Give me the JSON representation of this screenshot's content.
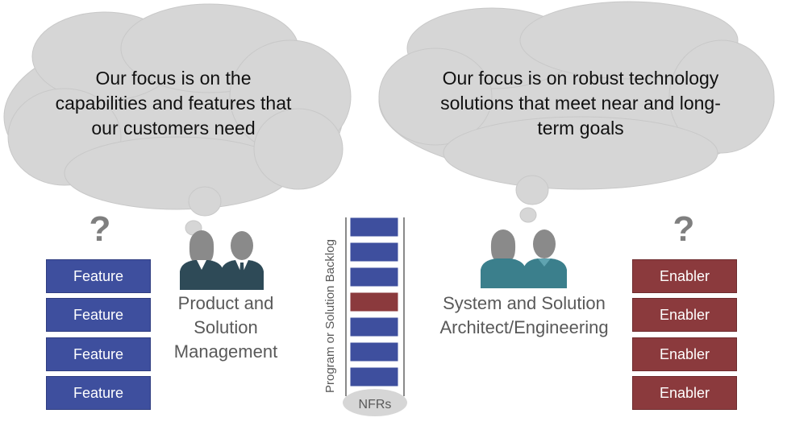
{
  "left_thought": {
    "lines": [
      "Our focus is on the",
      "capabilities and features that",
      "our customers need"
    ]
  },
  "right_thought": {
    "lines": [
      "Our focus is on robust technology",
      "solutions that meet near and long-",
      "term goals"
    ]
  },
  "question_mark": "?",
  "features": [
    "Feature",
    "Feature",
    "Feature",
    "Feature"
  ],
  "enablers": [
    "Enabler",
    "Enabler",
    "Enabler",
    "Enabler"
  ],
  "product_role": {
    "lines": [
      "Product and",
      "Solution",
      "Management"
    ]
  },
  "architect_role": {
    "lines": [
      "System and Solution",
      "Architect/Engineering"
    ]
  },
  "backlog": {
    "title": "Program or Solution Backlog",
    "nfr_label": "NFRs",
    "items": [
      "feature",
      "feature",
      "feature",
      "enabler",
      "feature",
      "feature",
      "feature"
    ]
  },
  "colors": {
    "feature": "#3e4f9e",
    "enabler": "#8b3a3d",
    "cloud": "#d6d6d6",
    "person_gray": "#8a8a8a",
    "suit_dark": "#2e4a57",
    "suit_teal": "#3b7f8c"
  },
  "icons": [
    "thought-cloud-icon",
    "business-people-icon",
    "engineers-icon"
  ]
}
